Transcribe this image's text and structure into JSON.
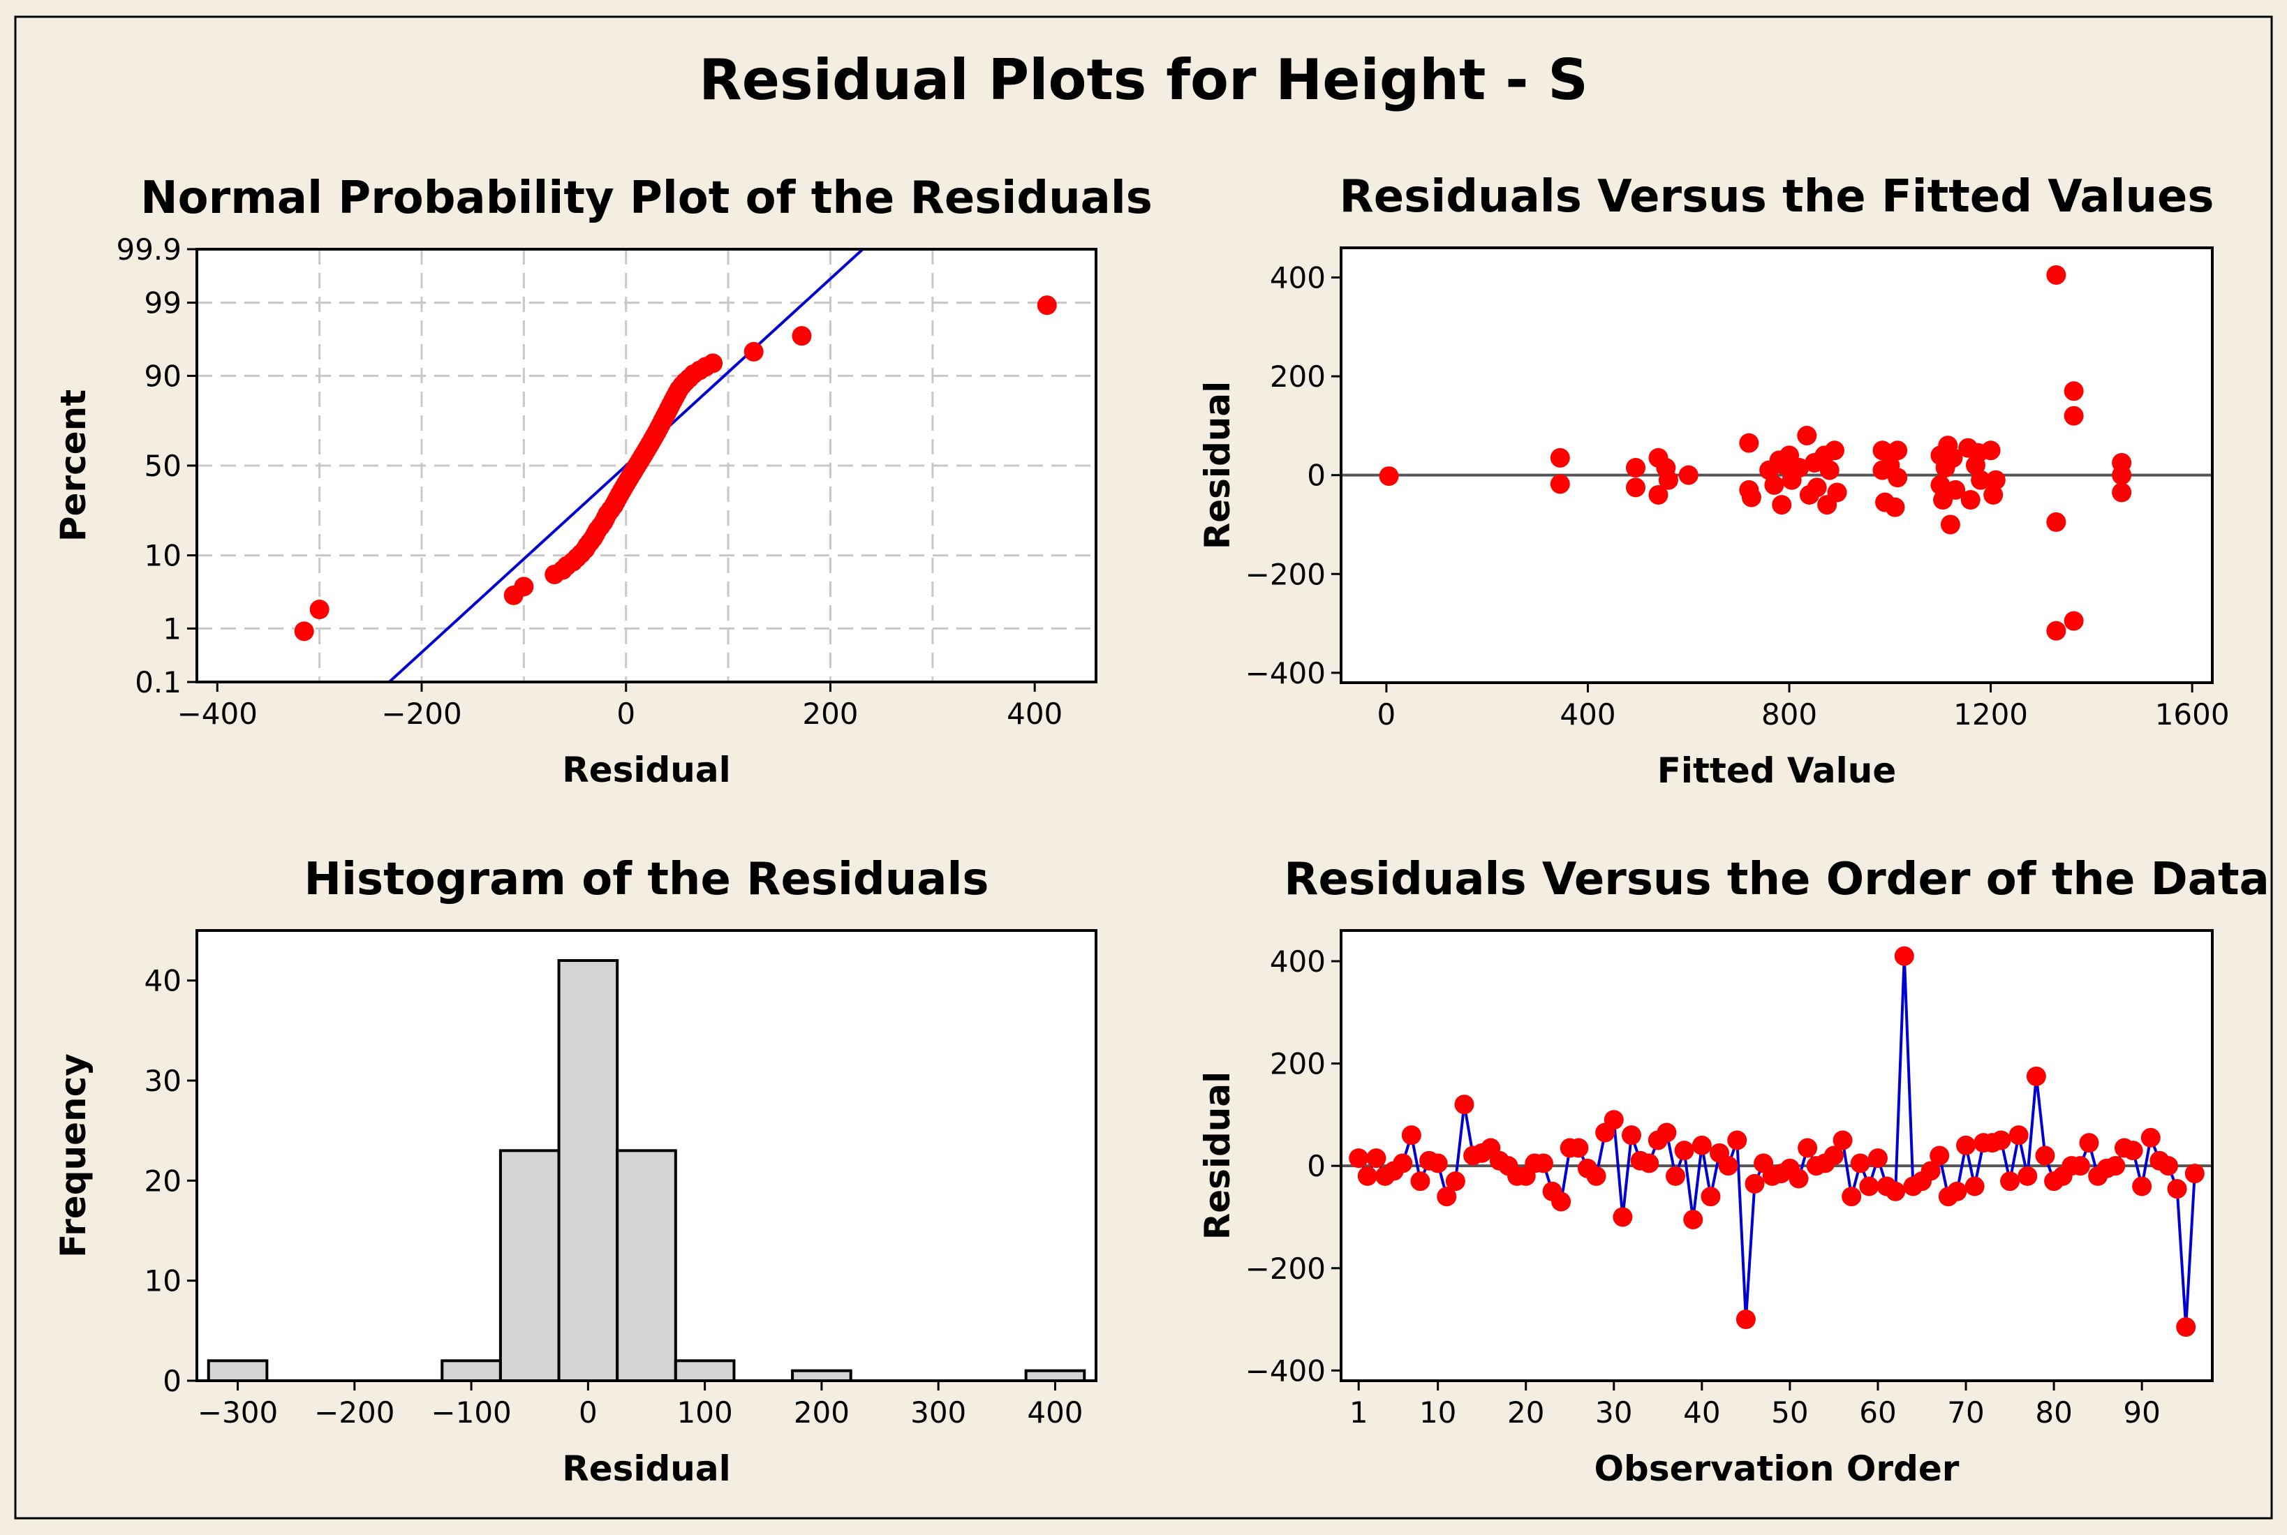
{
  "title": "Residual Plots for Height - S",
  "colors": {
    "background": "#f3ede2",
    "point": "#ff0000",
    "line": "#0000d0",
    "bar_fill": "#d4d4d4",
    "grid": "#c8c8c8",
    "zero_line": "#555555"
  },
  "chart_data": [
    {
      "id": "npp",
      "type": "scatter",
      "title": "Normal Probability Plot of the Residuals",
      "xlabel": "Residual",
      "ylabel": "Percent",
      "xlim": [
        -420,
        460
      ],
      "xticks": [
        -400,
        -200,
        0,
        200,
        400
      ],
      "xgrid": [
        -300,
        -200,
        -100,
        0,
        100,
        200,
        300
      ],
      "ytick_labels": [
        "0.1",
        "1",
        "10",
        "50",
        "90",
        "99",
        "99.9"
      ],
      "ylim_z": [
        -3.09,
        3.09
      ],
      "fit_line": {
        "mean": 0,
        "sd": 75,
        "x_range": [
          -232,
          232
        ]
      },
      "points": [
        [
          -315,
          0.9
        ],
        [
          -300,
          2.0
        ],
        [
          -110,
          3.2
        ],
        [
          -100,
          4.2
        ],
        [
          -70,
          6.0
        ],
        [
          -62,
          6.8
        ],
        [
          -58,
          7.6
        ],
        [
          -52,
          8.5
        ],
        [
          -48,
          9.4
        ],
        [
          -44,
          10.4
        ],
        [
          -40,
          11.6
        ],
        [
          -38,
          12.6
        ],
        [
          -35,
          13.8
        ],
        [
          -32,
          15.1
        ],
        [
          -30,
          16.4
        ],
        [
          -28,
          17.8
        ],
        [
          -25,
          19.3
        ],
        [
          -22,
          21.0
        ],
        [
          -20,
          22.7
        ],
        [
          -18,
          24.5
        ],
        [
          -15,
          26.4
        ],
        [
          -12,
          28.4
        ],
        [
          -10,
          30.3
        ],
        [
          -8,
          32.2
        ],
        [
          -6,
          34.1
        ],
        [
          -4,
          36.0
        ],
        [
          -2,
          37.9
        ],
        [
          0,
          39.8
        ],
        [
          2,
          41.7
        ],
        [
          4,
          43.6
        ],
        [
          6,
          45.5
        ],
        [
          8,
          47.4
        ],
        [
          10,
          49.3
        ],
        [
          12,
          51.2
        ],
        [
          14,
          53.1
        ],
        [
          16,
          55.0
        ],
        [
          18,
          56.9
        ],
        [
          20,
          58.8
        ],
        [
          22,
          60.7
        ],
        [
          24,
          62.6
        ],
        [
          26,
          64.5
        ],
        [
          28,
          66.4
        ],
        [
          30,
          68.3
        ],
        [
          32,
          70.2
        ],
        [
          34,
          72.1
        ],
        [
          36,
          74.0
        ],
        [
          38,
          75.8
        ],
        [
          40,
          77.5
        ],
        [
          42,
          79.2
        ],
        [
          44,
          80.8
        ],
        [
          46,
          82.3
        ],
        [
          48,
          83.7
        ],
        [
          50,
          85.0
        ],
        [
          52,
          86.2
        ],
        [
          55,
          87.4
        ],
        [
          58,
          88.4
        ],
        [
          62,
          89.4
        ],
        [
          66,
          90.4
        ],
        [
          72,
          91.3
        ],
        [
          78,
          92.1
        ],
        [
          85,
          92.8
        ],
        [
          125,
          94.8
        ],
        [
          172,
          96.8
        ],
        [
          412,
          98.9
        ]
      ]
    },
    {
      "id": "fitted",
      "type": "scatter",
      "title": "Residuals Versus the Fitted Values",
      "xlabel": "Fitted Value",
      "ylabel": "Residual",
      "xlim": [
        -90,
        1640
      ],
      "ylim": [
        -420,
        460
      ],
      "xticks": [
        0,
        400,
        800,
        1200,
        1600
      ],
      "yticks": [
        -400,
        -200,
        0,
        200,
        400
      ],
      "reference_line": 0,
      "points": [
        [
          5,
          -2
        ],
        [
          345,
          35
        ],
        [
          345,
          -18
        ],
        [
          495,
          15
        ],
        [
          495,
          -25
        ],
        [
          540,
          35
        ],
        [
          540,
          -40
        ],
        [
          555,
          15
        ],
        [
          560,
          -10
        ],
        [
          600,
          0
        ],
        [
          720,
          65
        ],
        [
          720,
          -30
        ],
        [
          725,
          -45
        ],
        [
          760,
          10
        ],
        [
          770,
          -20
        ],
        [
          780,
          30
        ],
        [
          785,
          -60
        ],
        [
          790,
          20
        ],
        [
          800,
          40
        ],
        [
          805,
          -10
        ],
        [
          820,
          15
        ],
        [
          835,
          80
        ],
        [
          840,
          -40
        ],
        [
          850,
          25
        ],
        [
          855,
          -25
        ],
        [
          870,
          40
        ],
        [
          875,
          -60
        ],
        [
          880,
          10
        ],
        [
          890,
          50
        ],
        [
          895,
          -35
        ],
        [
          985,
          50
        ],
        [
          985,
          10
        ],
        [
          990,
          -55
        ],
        [
          1000,
          20
        ],
        [
          1010,
          -65
        ],
        [
          1015,
          50
        ],
        [
          1015,
          -5
        ],
        [
          1100,
          40
        ],
        [
          1100,
          -20
        ],
        [
          1105,
          -50
        ],
        [
          1110,
          15
        ],
        [
          1115,
          60
        ],
        [
          1120,
          -100
        ],
        [
          1125,
          35
        ],
        [
          1130,
          -30
        ],
        [
          1155,
          55
        ],
        [
          1160,
          -50
        ],
        [
          1170,
          20
        ],
        [
          1175,
          45
        ],
        [
          1180,
          -10
        ],
        [
          1200,
          50
        ],
        [
          1205,
          -40
        ],
        [
          1210,
          -10
        ],
        [
          1330,
          405
        ],
        [
          1330,
          -95
        ],
        [
          1330,
          -315
        ],
        [
          1365,
          170
        ],
        [
          1365,
          120
        ],
        [
          1365,
          -295
        ],
        [
          1460,
          25
        ],
        [
          1460,
          0
        ],
        [
          1460,
          -35
        ]
      ]
    },
    {
      "id": "hist",
      "type": "bar",
      "title": "Histogram of the Residuals",
      "xlabel": "Residual",
      "ylabel": "Frequency",
      "xlim": [
        -335,
        435
      ],
      "ylim": [
        0,
        45
      ],
      "xticks": [
        -300,
        -200,
        -100,
        0,
        100,
        200,
        300,
        400
      ],
      "yticks": [
        0,
        10,
        20,
        30,
        40
      ],
      "bin_width": 50,
      "bins": [
        {
          "center": -300,
          "count": 2
        },
        {
          "center": -250,
          "count": 0
        },
        {
          "center": -200,
          "count": 0
        },
        {
          "center": -150,
          "count": 0
        },
        {
          "center": -100,
          "count": 2
        },
        {
          "center": -50,
          "count": 23
        },
        {
          "center": 0,
          "count": 42
        },
        {
          "center": 50,
          "count": 23
        },
        {
          "center": 100,
          "count": 2
        },
        {
          "center": 150,
          "count": 0
        },
        {
          "center": 200,
          "count": 1
        },
        {
          "center": 250,
          "count": 0
        },
        {
          "center": 300,
          "count": 0
        },
        {
          "center": 350,
          "count": 0
        },
        {
          "center": 400,
          "count": 1
        }
      ]
    },
    {
      "id": "order",
      "type": "line",
      "title": "Residuals Versus the Order of the Data",
      "xlabel": "Observation Order",
      "ylabel": "Residual",
      "xlim": [
        -1,
        98
      ],
      "ylim": [
        -420,
        460
      ],
      "xticks": [
        1,
        10,
        20,
        30,
        40,
        50,
        60,
        70,
        80,
        90
      ],
      "yticks": [
        -400,
        -200,
        0,
        200,
        400
      ],
      "reference_line": 0,
      "values": [
        15,
        -20,
        15,
        -20,
        -10,
        5,
        60,
        -30,
        10,
        5,
        -60,
        -30,
        120,
        20,
        25,
        35,
        10,
        0,
        -20,
        -20,
        5,
        5,
        -50,
        -70,
        35,
        35,
        -5,
        -20,
        65,
        90,
        -100,
        60,
        10,
        5,
        50,
        65,
        -20,
        30,
        -105,
        40,
        -60,
        25,
        0,
        50,
        -300,
        -35,
        5,
        -20,
        -15,
        -5,
        -25,
        35,
        0,
        5,
        20,
        50,
        -60,
        5,
        -40,
        15,
        -40,
        -50,
        410,
        -40,
        -30,
        -10,
        20,
        -60,
        -50,
        40,
        -40,
        45,
        45,
        50,
        -30,
        60,
        -20,
        175,
        20,
        -30,
        -20,
        0,
        0,
        45,
        -20,
        -5,
        0,
        35,
        30,
        -40,
        55,
        10,
        0,
        -45,
        -315,
        -15
      ]
    }
  ]
}
